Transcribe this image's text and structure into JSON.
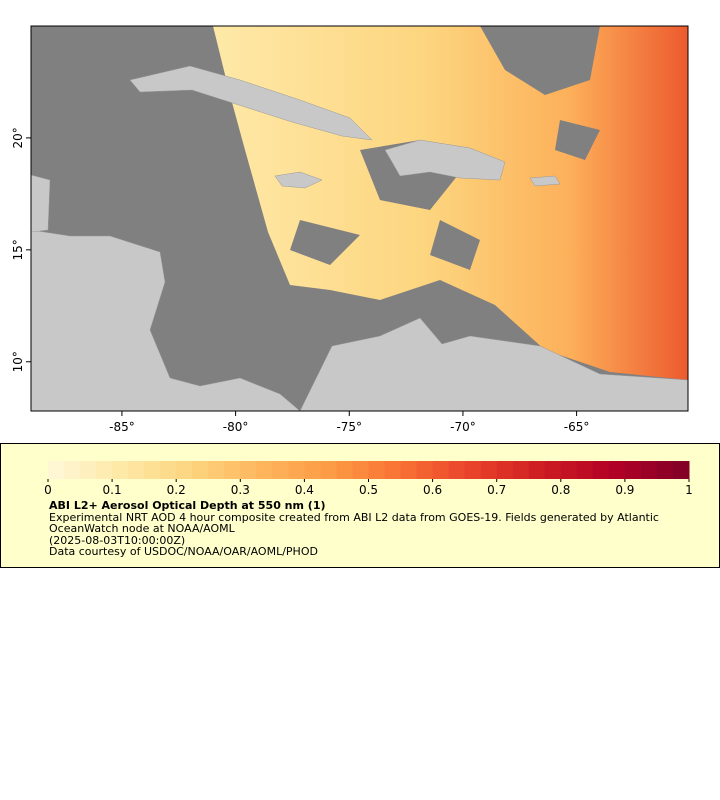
{
  "map": {
    "xlim": [
      -89,
      -60.1
    ],
    "ylim": [
      7.8,
      25
    ],
    "xticks": [
      {
        "value": -85,
        "label": "-85°"
      },
      {
        "value": -80,
        "label": "-80°"
      },
      {
        "value": -75,
        "label": "-75°"
      },
      {
        "value": -70,
        "label": "-70°"
      },
      {
        "value": -65,
        "label": "-65°"
      }
    ],
    "yticks": [
      {
        "value": 10,
        "label": "10°"
      },
      {
        "value": 15,
        "label": "15°"
      },
      {
        "value": 20,
        "label": "20°"
      }
    ]
  },
  "colorbar": {
    "range": [
      0,
      1
    ],
    "ticks": [
      0,
      0.1,
      0.2,
      0.3,
      0.4,
      0.5,
      0.6,
      0.7,
      0.8,
      0.9,
      1
    ],
    "colors": [
      "#fff8da",
      "#fee9a8",
      "#fdd57f",
      "#fdb55c",
      "#fd9a44",
      "#f86f34",
      "#e8402a",
      "#cc1a22",
      "#b00026",
      "#800026"
    ],
    "title": "ABI L2+ Aerosol Optical Depth at 550 nm (1)",
    "description": "Experimental NRT AOD 4 hour composite created from ABI L2 data from GOES-19. Fields generated by Atlantic OceanWatch node at NOAA/AOML",
    "timestamp": "(2025-08-03T10:00:00Z)",
    "credit": "Data courtesy of USDOC/NOAA/OAR/AOML/PHOD"
  }
}
